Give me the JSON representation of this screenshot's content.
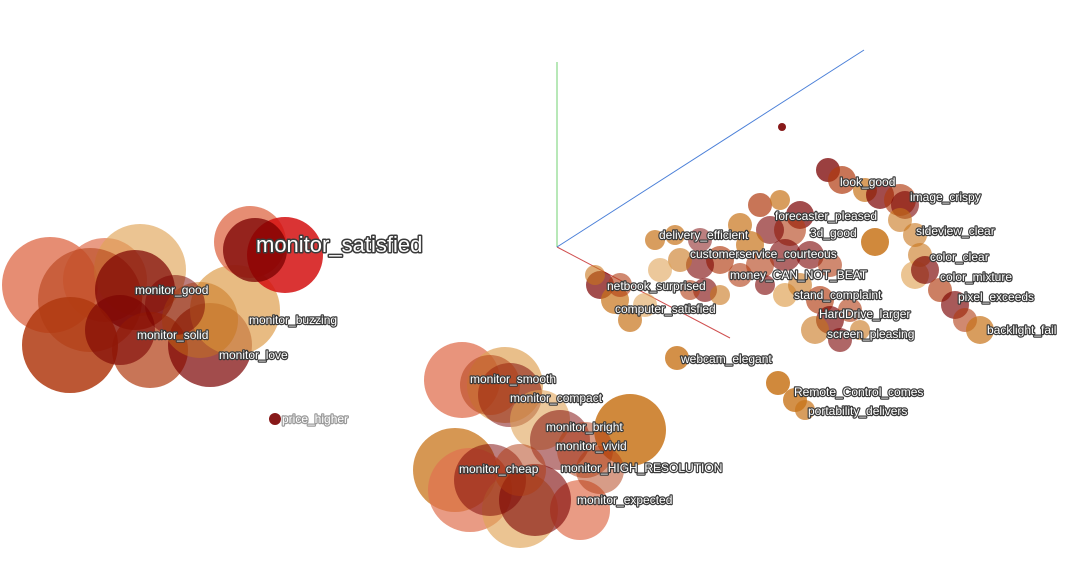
{
  "chart_data": {
    "type": "scatter",
    "title": "",
    "projection": "3d-embedding",
    "grid": false,
    "legend": "none",
    "colors": {
      "dark": "#7a0000",
      "mid": "#b03a10",
      "orange": "#c8741a",
      "light": "#e0a458",
      "salmon": "#e07050",
      "red": "#d41010",
      "axis_x": "#d05050",
      "axis_y": "#70d070",
      "axis_z": "#4a7fd8"
    },
    "labels": [
      {
        "text": "monitor_satisfied",
        "emphasis": "large"
      },
      {
        "text": "monitor_good"
      },
      {
        "text": "monitor_buzzing"
      },
      {
        "text": "monitor_solid"
      },
      {
        "text": "monitor_love"
      },
      {
        "text": "price_higher",
        "emphasis": "faint"
      },
      {
        "text": "monitor_smooth"
      },
      {
        "text": "monitor_compact"
      },
      {
        "text": "monitor_bright"
      },
      {
        "text": "monitor_vivid"
      },
      {
        "text": "monitor_cheap"
      },
      {
        "text": "monitor_HIGH_RESOLUTION"
      },
      {
        "text": "monitor_expected"
      },
      {
        "text": "look_good"
      },
      {
        "text": "image_crispy"
      },
      {
        "text": "forecaster_pleased"
      },
      {
        "text": "delivery_efficient"
      },
      {
        "text": "3d_good"
      },
      {
        "text": "sideview_clear"
      },
      {
        "text": "customerservice_courteous"
      },
      {
        "text": "color_clear"
      },
      {
        "text": "money_CAN_NOT_BEAT"
      },
      {
        "text": "color_mixture"
      },
      {
        "text": "netbook_surprised"
      },
      {
        "text": "stand_complaint"
      },
      {
        "text": "pixel_exceeds"
      },
      {
        "text": "computer_satisfied"
      },
      {
        "text": "HardDrive_larger"
      },
      {
        "text": "backlight_fail"
      },
      {
        "text": "screen_pleasing"
      },
      {
        "text": "webcam_elegant"
      },
      {
        "text": "Remote_Control_comes"
      },
      {
        "text": "portability_delivers"
      }
    ]
  }
}
